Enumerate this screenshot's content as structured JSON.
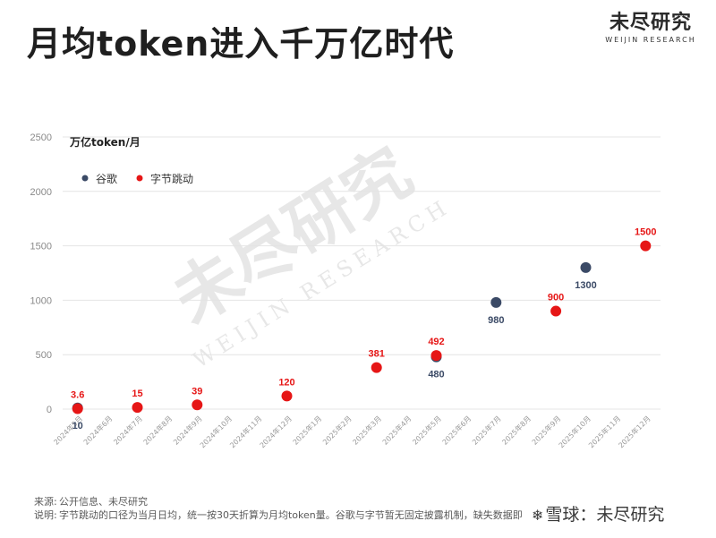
{
  "header": {
    "title": "月均token进入千万亿时代",
    "logo_cn": "未尽研究",
    "logo_en": "WEIJIN RESEARCH"
  },
  "watermark": {
    "cn": "未尽研究",
    "en": "WEIJIN RESEARCH"
  },
  "colors": {
    "google": "#3b4a66",
    "bytedance": "#e61616",
    "grid": "#e4e4e4",
    "axis_text": "#8a8a8a"
  },
  "chart_data": {
    "type": "scatter",
    "ylabel": "万亿token/月",
    "ylim": [
      0,
      2500
    ],
    "yticks": [
      0,
      500,
      1000,
      1500,
      2000,
      2500
    ],
    "grid": true,
    "legend_position": "top-left",
    "categories": [
      "2024年5月",
      "2024年6月",
      "2024年7月",
      "2024年8月",
      "2024年9月",
      "2024年10月",
      "2024年11月",
      "2024年12月",
      "2025年1月",
      "2025年2月",
      "2025年3月",
      "2025年4月",
      "2025年5月",
      "2025年6月",
      "2025年7月",
      "2025年8月",
      "2025年9月",
      "2025年10月",
      "2025年11月",
      "2025年12月"
    ],
    "series": [
      {
        "name": "谷歌",
        "points": [
          {
            "x": "2024年5月",
            "y": 10,
            "label": "10"
          },
          {
            "x": "2025年5月",
            "y": 480,
            "label": "480"
          },
          {
            "x": "2025年7月",
            "y": 980,
            "label": "980"
          },
          {
            "x": "2025年10月",
            "y": 1300,
            "label": "1300"
          }
        ]
      },
      {
        "name": "字节跳动",
        "points": [
          {
            "x": "2024年5月",
            "y": 3.6,
            "label": "3.6"
          },
          {
            "x": "2024年7月",
            "y": 15,
            "label": "15"
          },
          {
            "x": "2024年9月",
            "y": 39,
            "label": "39"
          },
          {
            "x": "2024年12月",
            "y": 120,
            "label": "120"
          },
          {
            "x": "2025年3月",
            "y": 381,
            "label": "381"
          },
          {
            "x": "2025年5月",
            "y": 492,
            "label": "492"
          },
          {
            "x": "2025年9月",
            "y": 900,
            "label": "900"
          },
          {
            "x": "2025年12月",
            "y": 1500,
            "label": "1500"
          }
        ]
      }
    ]
  },
  "footer": {
    "source_key": "来源:",
    "source_val": "公开信息、未尽研究",
    "note_key": "说明:",
    "note_val": "字节跳动的口径为当月日均，统一按30天折算为月均token量。谷歌与字节暂无固定披露机制，缺失数据即"
  },
  "xueqiu": {
    "text": "雪球：未尽研究"
  }
}
